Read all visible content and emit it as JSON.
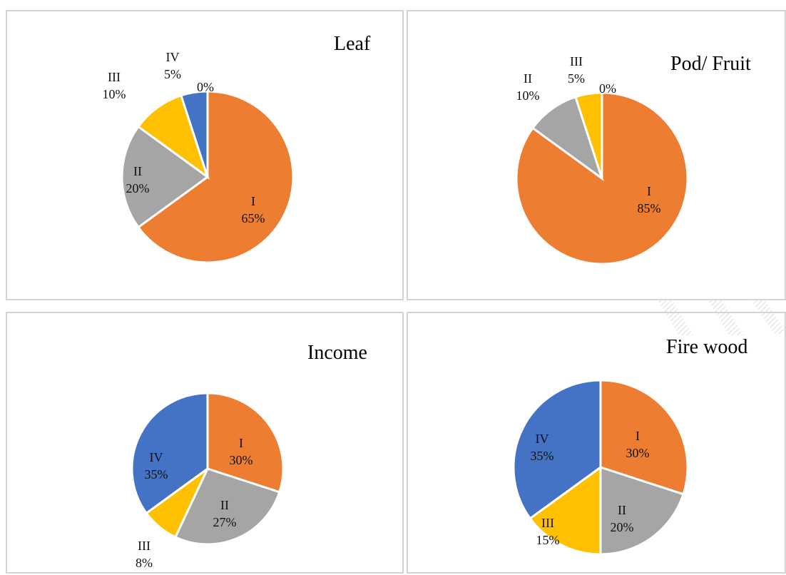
{
  "chart_data": [
    {
      "type": "pie",
      "title": "Leaf",
      "categories": [
        "I",
        "II",
        "III",
        "IV",
        ""
      ],
      "values": [
        65,
        20,
        10,
        5,
        0
      ],
      "value_labels": [
        "65%",
        "20%",
        "10%",
        "5%",
        "0%"
      ],
      "colors": [
        "#ed7d31",
        "#a5a5a5",
        "#ffc000",
        "#4472c4",
        "#5b9bd5"
      ]
    },
    {
      "type": "pie",
      "title": "Pod/ Fruit",
      "categories": [
        "I",
        "II",
        "III",
        ""
      ],
      "values": [
        85,
        10,
        5,
        0
      ],
      "value_labels": [
        "85%",
        "10%",
        "5%",
        "0%"
      ],
      "colors": [
        "#ed7d31",
        "#a5a5a5",
        "#ffc000",
        "#4472c4"
      ]
    },
    {
      "type": "pie",
      "title": "Income",
      "categories": [
        "I",
        "II",
        "III",
        "IV"
      ],
      "values": [
        30,
        27,
        8,
        35
      ],
      "value_labels": [
        "30%",
        "27%",
        "8%",
        "35%"
      ],
      "colors": [
        "#ed7d31",
        "#a5a5a5",
        "#ffc000",
        "#4472c4"
      ]
    },
    {
      "type": "pie",
      "title": "Fire wood",
      "categories": [
        "I",
        "II",
        "III",
        "IV"
      ],
      "values": [
        30,
        20,
        15,
        35
      ],
      "value_labels": [
        "30%",
        "20%",
        "15%",
        "35%"
      ],
      "colors": [
        "#ed7d31",
        "#a5a5a5",
        "#ffc000",
        "#4472c4"
      ]
    }
  ]
}
